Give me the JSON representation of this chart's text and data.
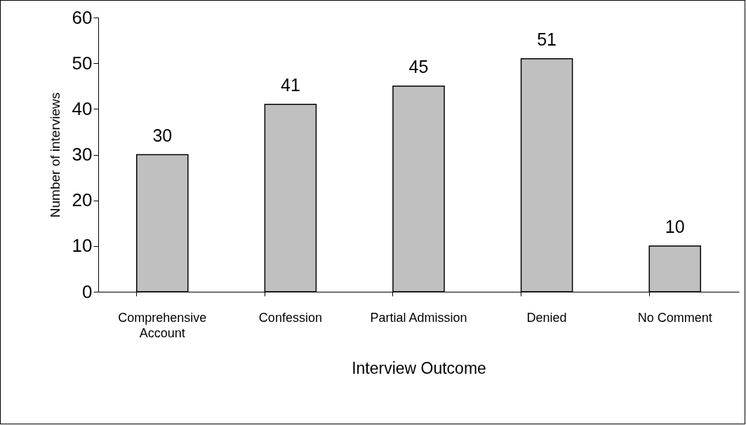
{
  "chart_data": {
    "type": "bar",
    "xlabel": "Interview Outcome",
    "ylabel": "Number of interviews",
    "categories": [
      "Comprehensive Account",
      "Confession",
      "Partial Admission",
      "Denied",
      "No Comment"
    ],
    "values": [
      30,
      41,
      45,
      51,
      10
    ],
    "color": "#c0c0c0",
    "ylim": [
      0,
      60
    ],
    "yticks": [
      0,
      10,
      20,
      30,
      40,
      50,
      60
    ],
    "data_labels": true,
    "grid": false
  }
}
